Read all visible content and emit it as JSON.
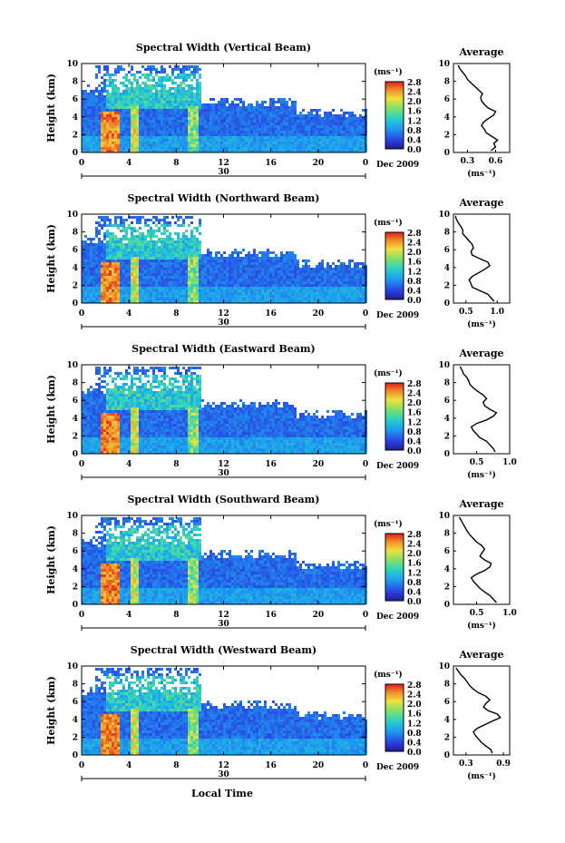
{
  "figure": {
    "date_label": "Dec 2009",
    "day_label": "30",
    "xlabel": "Local Time",
    "ylabel": "Height (km)",
    "colorbar_unit": "(ms⁻¹)",
    "avg_title": "Average",
    "avg_xlabel": "(ms⁻¹)"
  },
  "chart_data": [
    {
      "type": "heatmap",
      "title": "Spectral Width (Vertical Beam)",
      "xlabel": "Local Time",
      "ylabel": "Height (km)",
      "x_ticks": [
        "0",
        "4",
        "8",
        "12",
        "16",
        "20",
        "0"
      ],
      "xlim": [
        0,
        24
      ],
      "y_ticks": [
        "0",
        "2",
        "4",
        "6",
        "8",
        "10"
      ],
      "ylim": [
        0,
        10
      ],
      "colorbar": {
        "ticks": [
          "2.8",
          "2.4",
          "2.0",
          "1.6",
          "1.2",
          "0.8",
          "0.4",
          "0.0"
        ],
        "range": [
          0,
          2.8
        ],
        "unit": "(ms⁻¹)"
      },
      "average_profile": {
        "title": "Average",
        "x_ticks": [
          "0.3",
          "0.6"
        ],
        "xlim": [
          0.15,
          0.75
        ],
        "xlabel": "(ms⁻¹)",
        "height": [
          0.2,
          0.6,
          1,
          1.4,
          1.8,
          2.2,
          2.6,
          3,
          3.4,
          3.8,
          4.2,
          4.6,
          5,
          5.4,
          5.8,
          6.2,
          6.6,
          7,
          7.4,
          7.8,
          8.2,
          8.6,
          9,
          9.4,
          9.8
        ],
        "width": [
          0.55,
          0.6,
          0.58,
          0.62,
          0.56,
          0.5,
          0.48,
          0.45,
          0.47,
          0.52,
          0.58,
          0.6,
          0.52,
          0.48,
          0.45,
          0.44,
          0.46,
          0.42,
          0.38,
          0.34,
          0.3,
          0.28,
          0.25,
          0.22,
          0.2
        ]
      }
    },
    {
      "type": "heatmap",
      "title": "Spectral Width (Northward Beam)",
      "xlabel": "Local Time",
      "ylabel": "Height (km)",
      "x_ticks": [
        "0",
        "4",
        "8",
        "12",
        "16",
        "20",
        "0"
      ],
      "xlim": [
        0,
        24
      ],
      "y_ticks": [
        "0",
        "2",
        "4",
        "6",
        "8",
        "10"
      ],
      "ylim": [
        0,
        10
      ],
      "colorbar": {
        "ticks": [
          "2.8",
          "2.4",
          "2.0",
          "1.6",
          "1.2",
          "0.8",
          "0.4",
          "0.0"
        ],
        "range": [
          0,
          2.8
        ],
        "unit": "(ms⁻¹)"
      },
      "average_profile": {
        "title": "Average",
        "x_ticks": [
          "0.5",
          "1.0"
        ],
        "xlim": [
          0.3,
          1.2
        ],
        "xlabel": "(ms⁻¹)",
        "height": [
          0.2,
          0.6,
          1,
          1.4,
          1.8,
          2.2,
          2.6,
          3,
          3.4,
          3.8,
          4.2,
          4.6,
          5,
          5.4,
          5.8,
          6.2,
          6.6,
          7,
          7.4,
          7.8,
          8.2,
          8.6,
          9,
          9.4,
          9.8
        ],
        "width": [
          0.95,
          0.9,
          0.85,
          0.72,
          0.6,
          0.58,
          0.55,
          0.6,
          0.7,
          0.8,
          0.88,
          0.85,
          0.72,
          0.6,
          0.58,
          0.62,
          0.6,
          0.55,
          0.5,
          0.45,
          0.45,
          0.42,
          0.38,
          0.35,
          0.33
        ]
      }
    },
    {
      "type": "heatmap",
      "title": "Spectral Width (Eastward Beam)",
      "xlabel": "Local Time",
      "ylabel": "Height (km)",
      "x_ticks": [
        "0",
        "4",
        "8",
        "12",
        "16",
        "20",
        "0"
      ],
      "xlim": [
        0,
        24
      ],
      "y_ticks": [
        "0",
        "2",
        "4",
        "6",
        "8",
        "10"
      ],
      "ylim": [
        0,
        10
      ],
      "colorbar": {
        "ticks": [
          "2.8",
          "2.4",
          "2.0",
          "1.6",
          "1.2",
          "0.8",
          "0.4",
          "0.0"
        ],
        "range": [
          0,
          2.8
        ],
        "unit": "(ms⁻¹)"
      },
      "average_profile": {
        "title": "Average",
        "x_ticks": [
          "0.5",
          "1.0"
        ],
        "xlim": [
          0.15,
          1.0
        ],
        "xlabel": "(ms⁻¹)",
        "height": [
          0.2,
          0.6,
          1,
          1.4,
          1.8,
          2.2,
          2.6,
          3,
          3.4,
          3.8,
          4.2,
          4.6,
          5,
          5.4,
          5.8,
          6.2,
          6.6,
          7,
          7.4,
          7.8,
          8.2,
          8.6,
          9,
          9.4,
          9.8
        ],
        "width": [
          0.78,
          0.75,
          0.7,
          0.65,
          0.55,
          0.5,
          0.45,
          0.42,
          0.5,
          0.65,
          0.75,
          0.8,
          0.7,
          0.62,
          0.6,
          0.65,
          0.6,
          0.52,
          0.45,
          0.4,
          0.38,
          0.35,
          0.3,
          0.28,
          0.25
        ]
      }
    },
    {
      "type": "heatmap",
      "title": "Spectral Width (Southward Beam)",
      "xlabel": "Local Time",
      "ylabel": "Height (km)",
      "x_ticks": [
        "0",
        "4",
        "8",
        "12",
        "16",
        "20",
        "0"
      ],
      "xlim": [
        0,
        24
      ],
      "y_ticks": [
        "0",
        "2",
        "4",
        "6",
        "8",
        "10"
      ],
      "ylim": [
        0,
        10
      ],
      "colorbar": {
        "ticks": [
          "2.8",
          "2.4",
          "2.0",
          "1.6",
          "1.2",
          "0.8",
          "0.4",
          "0.0"
        ],
        "range": [
          0,
          2.8
        ],
        "unit": "(ms⁻¹)"
      },
      "average_profile": {
        "title": "Average",
        "x_ticks": [
          "0.5",
          "1.0"
        ],
        "xlim": [
          0.15,
          1.0
        ],
        "xlabel": "(ms⁻¹)",
        "height": [
          0.2,
          0.6,
          1,
          1.4,
          1.8,
          2.2,
          2.6,
          3,
          3.4,
          3.8,
          4.2,
          4.6,
          5,
          5.4,
          5.8,
          6.2,
          6.6,
          7,
          7.4,
          7.8,
          8.2,
          8.6,
          9,
          9.4,
          9.8
        ],
        "width": [
          0.8,
          0.75,
          0.7,
          0.62,
          0.55,
          0.5,
          0.45,
          0.42,
          0.5,
          0.62,
          0.7,
          0.72,
          0.62,
          0.55,
          0.58,
          0.62,
          0.58,
          0.5,
          0.45,
          0.4,
          0.36,
          0.33,
          0.3,
          0.27,
          0.24
        ]
      }
    },
    {
      "type": "heatmap",
      "title": "Spectral Width (Westward Beam)",
      "xlabel": "Local Time",
      "ylabel": "Height (km)",
      "x_ticks": [
        "0",
        "4",
        "8",
        "12",
        "16",
        "20",
        "0"
      ],
      "xlim": [
        0,
        24
      ],
      "y_ticks": [
        "0",
        "2",
        "4",
        "6",
        "8",
        "10"
      ],
      "ylim": [
        0,
        10
      ],
      "colorbar": {
        "ticks": [
          "2.8",
          "2.4",
          "2.0",
          "1.6",
          "1.2",
          "0.8",
          "0.4",
          "0.0"
        ],
        "range": [
          0,
          2.8
        ],
        "unit": "(ms⁻¹)"
      },
      "average_profile": {
        "title": "Average",
        "x_ticks": [
          "0.3",
          "0.9"
        ],
        "xlim": [
          0.1,
          1.0
        ],
        "xlabel": "(ms⁻¹)",
        "height": [
          0.2,
          0.6,
          1,
          1.4,
          1.8,
          2.2,
          2.6,
          3,
          3.4,
          3.8,
          4.2,
          4.6,
          5,
          5.4,
          5.8,
          6.2,
          6.6,
          7,
          7.4,
          7.8,
          8.2,
          8.6,
          9,
          9.4,
          9.8
        ],
        "width": [
          0.72,
          0.7,
          0.62,
          0.55,
          0.5,
          0.45,
          0.42,
          0.48,
          0.6,
          0.72,
          0.85,
          0.8,
          0.65,
          0.58,
          0.62,
          0.68,
          0.62,
          0.5,
          0.42,
          0.36,
          0.32,
          0.28,
          0.22,
          0.18,
          0.14
        ]
      }
    }
  ]
}
